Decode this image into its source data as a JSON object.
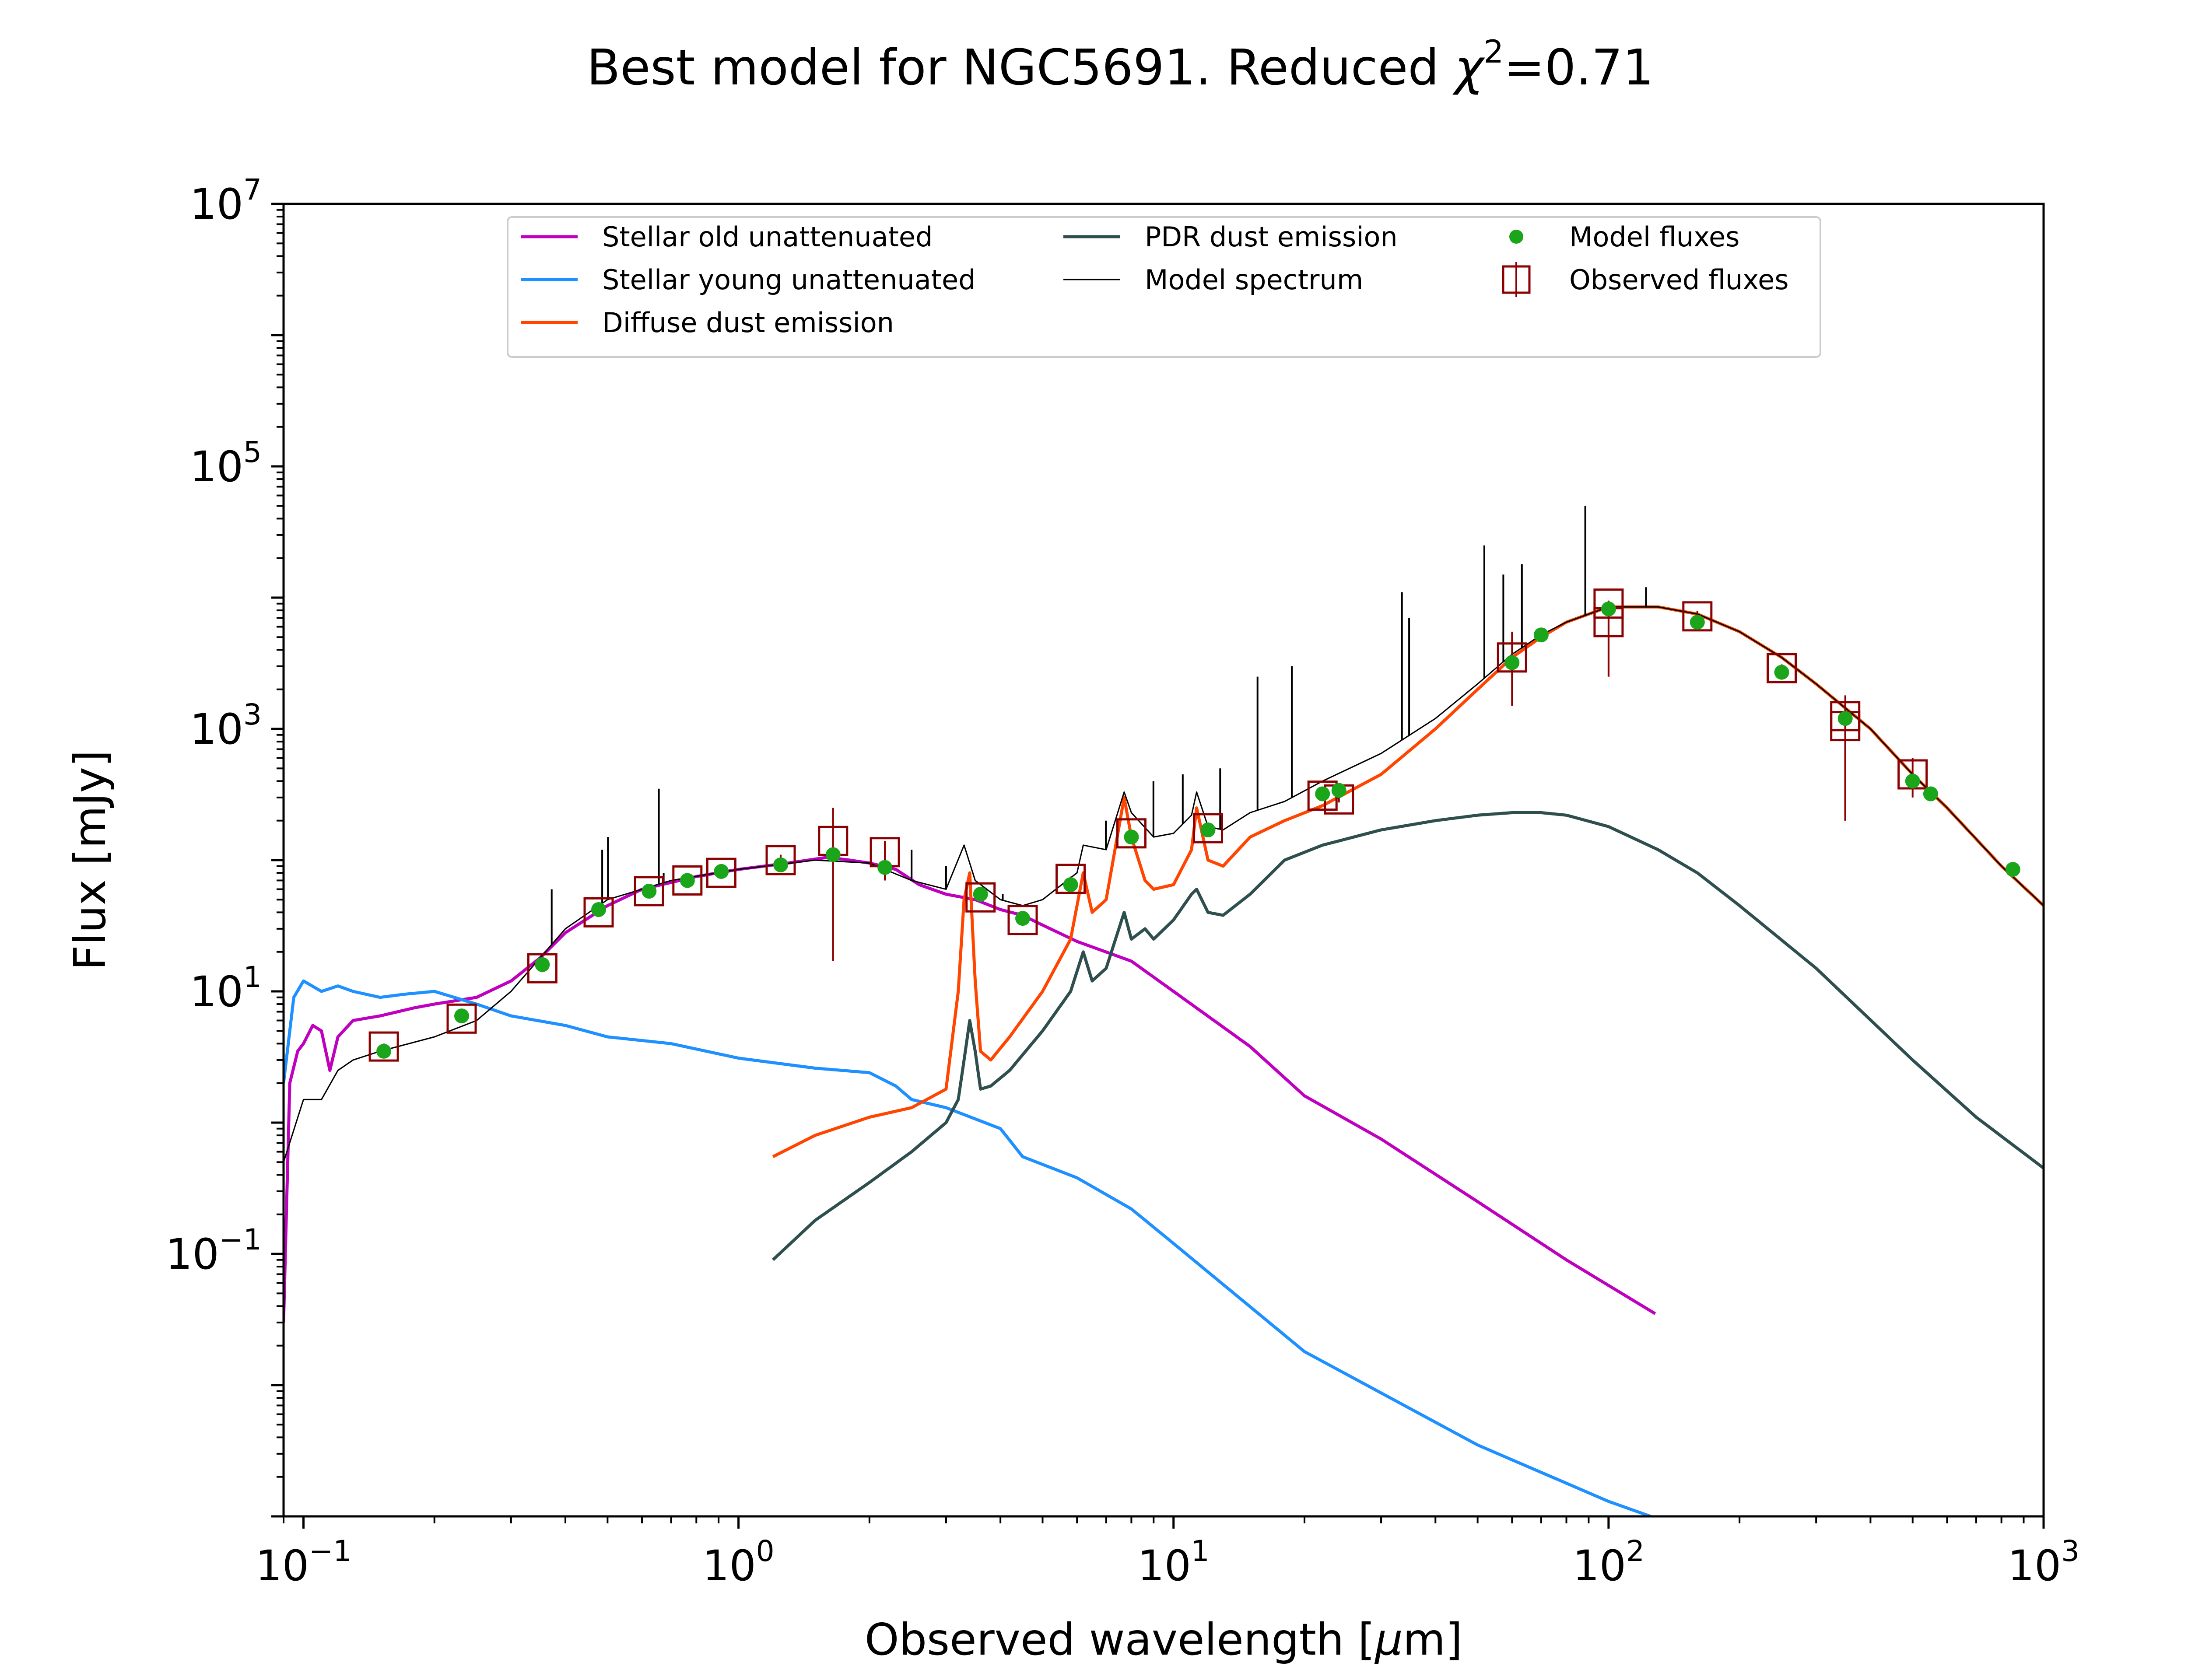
{
  "chart_data": {
    "type": "line",
    "title": "Best model for NGC5691. Reduced χ²=0.71",
    "title_parts": {
      "prefix": "Best model for NGC5691. Reduced ",
      "symbol": "χ",
      "sup": "2",
      "suffix": "=0.71"
    },
    "xlabel": "Observed wavelength [μm]",
    "xlabel_parts": {
      "prefix": "Observed wavelength [",
      "symbol": "μ",
      "suffix": "m]"
    },
    "ylabel": "Flux [mJy]",
    "xscale": "log",
    "yscale": "log",
    "xlim": [
      0.09,
      1000
    ],
    "ylim": [
      0.001,
      10000000
    ],
    "x_ticks": [
      {
        "base": "10",
        "exp": "−1",
        "value": 0.1
      },
      {
        "base": "10",
        "exp": "0",
        "value": 1
      },
      {
        "base": "10",
        "exp": "1",
        "value": 10
      },
      {
        "base": "10",
        "exp": "2",
        "value": 100
      },
      {
        "base": "10",
        "exp": "3",
        "value": 1000
      }
    ],
    "y_ticks": [
      {
        "base": "10",
        "exp": "−1",
        "value": 0.1
      },
      {
        "base": "10",
        "exp": "1",
        "value": 10
      },
      {
        "base": "10",
        "exp": "3",
        "value": 1000
      },
      {
        "base": "10",
        "exp": "5",
        "value": 100000
      },
      {
        "base": "10",
        "exp": "7",
        "value": 10000000
      }
    ],
    "legend_position": "top-center",
    "series": [
      {
        "name": "Stellar old unattenuated",
        "kind": "line",
        "color": "#bf00bf",
        "x": [
          0.09,
          0.093,
          0.097,
          0.1,
          0.105,
          0.11,
          0.115,
          0.12,
          0.13,
          0.15,
          0.18,
          0.2,
          0.25,
          0.3,
          0.35,
          0.4,
          0.5,
          0.6,
          0.8,
          1.0,
          1.3,
          1.6,
          1.8,
          2.0,
          2.3,
          2.6,
          3.0,
          3.5,
          4.0,
          4.5,
          5.0,
          6.0,
          8.0,
          10,
          15,
          20,
          30,
          50,
          80,
          128
        ],
        "y": [
          0.03,
          2.0,
          3.5,
          4.0,
          5.5,
          5.0,
          2.5,
          4.5,
          6.0,
          6.5,
          7.5,
          8.0,
          9.0,
          12,
          18,
          28,
          45,
          60,
          75,
          85,
          95,
          105,
          100,
          95,
          85,
          65,
          55,
          50,
          42,
          38,
          32,
          24,
          17,
          10,
          3.8,
          1.6,
          0.75,
          0.25,
          0.09,
          0.035
        ]
      },
      {
        "name": "Stellar young unattenuated",
        "kind": "line",
        "color": "#1e90ff",
        "x": [
          0.09,
          0.095,
          0.1,
          0.11,
          0.12,
          0.13,
          0.15,
          0.17,
          0.2,
          0.25,
          0.3,
          0.4,
          0.5,
          0.7,
          1.0,
          1.5,
          2.0,
          2.3,
          2.5,
          3.0,
          4.0,
          4.5,
          6.0,
          8.0,
          10,
          20,
          50,
          100,
          125
        ],
        "y": [
          2.0,
          9.0,
          12,
          10,
          11,
          10,
          9.0,
          9.5,
          10,
          8.0,
          6.5,
          5.5,
          4.5,
          4.0,
          3.1,
          2.6,
          2.4,
          1.9,
          1.5,
          1.3,
          0.9,
          0.55,
          0.38,
          0.22,
          0.12,
          0.018,
          0.0035,
          0.0013,
          0.001
        ]
      },
      {
        "name": "Diffuse dust emission",
        "kind": "line",
        "color": "#ff4500",
        "x": [
          1.2,
          1.5,
          2.0,
          2.5,
          3.0,
          3.2,
          3.3,
          3.4,
          3.5,
          3.6,
          3.8,
          4.2,
          5.0,
          5.8,
          6.2,
          6.5,
          7.0,
          7.7,
          8.0,
          8.6,
          9.0,
          10,
          11,
          11.3,
          12,
          13,
          15,
          18,
          22,
          30,
          40,
          50,
          60,
          70,
          80,
          100,
          130,
          160,
          200,
          250,
          300,
          400,
          500,
          600,
          800,
          1000
        ],
        "y": [
          0.55,
          0.8,
          1.1,
          1.3,
          1.8,
          10,
          50,
          80,
          12,
          3.5,
          3.0,
          4.5,
          10,
          25,
          80,
          40,
          50,
          300,
          150,
          70,
          60,
          65,
          120,
          250,
          100,
          90,
          150,
          200,
          260,
          450,
          1000,
          2000,
          3500,
          5000,
          6500,
          8500,
          8500,
          7500,
          5500,
          3500,
          2200,
          1000,
          450,
          250,
          90,
          45
        ]
      },
      {
        "name": "PDR dust emission",
        "kind": "line",
        "color": "#2f4f4f",
        "x": [
          1.2,
          1.5,
          2.0,
          2.5,
          3.0,
          3.2,
          3.3,
          3.4,
          3.5,
          3.6,
          3.8,
          4.2,
          5.0,
          5.8,
          6.2,
          6.5,
          7.0,
          7.7,
          8.0,
          8.6,
          9.0,
          10,
          11,
          11.3,
          12,
          13,
          15,
          18,
          22,
          30,
          40,
          50,
          60,
          70,
          80,
          100,
          130,
          160,
          200,
          300,
          500,
          700,
          1000
        ],
        "y": [
          0.09,
          0.18,
          0.35,
          0.6,
          1.0,
          1.5,
          3.0,
          6.0,
          3.5,
          1.8,
          1.9,
          2.5,
          5.0,
          10,
          20,
          12,
          15,
          40,
          25,
          30,
          25,
          35,
          55,
          60,
          40,
          38,
          55,
          100,
          130,
          170,
          200,
          220,
          230,
          230,
          220,
          180,
          120,
          80,
          45,
          15,
          3.0,
          1.1,
          0.45
        ]
      },
      {
        "name": "Model spectrum",
        "kind": "line",
        "color": "#000000",
        "x": [
          0.09,
          0.1,
          0.11,
          0.12,
          0.13,
          0.15,
          0.2,
          0.25,
          0.3,
          0.4,
          0.5,
          0.7,
          1.0,
          1.5,
          2.0,
          2.5,
          3.0,
          3.3,
          3.5,
          4.0,
          4.5,
          5.0,
          6.0,
          6.2,
          7.0,
          7.7,
          8.0,
          9.0,
          10,
          11,
          11.3,
          12,
          13,
          15,
          18,
          22,
          30,
          40,
          50,
          60,
          70,
          80,
          100,
          130,
          160,
          200,
          250,
          300,
          400,
          500,
          600,
          800,
          1000
        ],
        "y": [
          0.5,
          1.5,
          1.5,
          2.5,
          3.0,
          3.5,
          4.5,
          6.0,
          10,
          30,
          50,
          70,
          85,
          100,
          95,
          70,
          60,
          130,
          70,
          50,
          45,
          50,
          80,
          130,
          120,
          330,
          230,
          150,
          160,
          220,
          330,
          180,
          170,
          230,
          280,
          400,
          650,
          1200,
          2200,
          3700,
          5200,
          6500,
          8500,
          8500,
          7500,
          5500,
          3500,
          2200,
          1000,
          450,
          250,
          90,
          45
        ],
        "emission_lines": [
          {
            "x": 0.372,
            "peak": 60
          },
          {
            "x": 0.486,
            "peak": 120
          },
          {
            "x": 0.501,
            "peak": 150
          },
          {
            "x": 0.656,
            "peak": 350
          },
          {
            "x": 0.673,
            "peak": 80
          },
          {
            "x": 2.5,
            "peak": 120
          },
          {
            "x": 3.0,
            "peak": 90
          },
          {
            "x": 4.05,
            "peak": 55
          },
          {
            "x": 6.99,
            "peak": 200
          },
          {
            "x": 8.99,
            "peak": 400
          },
          {
            "x": 10.5,
            "peak": 450
          },
          {
            "x": 12.8,
            "peak": 500
          },
          {
            "x": 15.6,
            "peak": 2500
          },
          {
            "x": 18.7,
            "peak": 3000
          },
          {
            "x": 33.5,
            "peak": 11000
          },
          {
            "x": 34.8,
            "peak": 7000
          },
          {
            "x": 51.8,
            "peak": 25000
          },
          {
            "x": 57.3,
            "peak": 15000
          },
          {
            "x": 63.2,
            "peak": 18000
          },
          {
            "x": 88.4,
            "peak": 50000
          },
          {
            "x": 121.9,
            "peak": 12000
          }
        ]
      },
      {
        "name": "Model fluxes",
        "kind": "scatter",
        "color": "#1aa51a",
        "x": [
          0.153,
          0.231,
          0.354,
          0.477,
          0.623,
          0.763,
          0.913,
          1.25,
          1.65,
          2.17,
          3.6,
          4.5,
          5.8,
          8.0,
          12,
          22,
          24,
          60,
          70,
          100,
          160,
          250,
          350,
          500,
          550,
          850
        ],
        "y": [
          3.5,
          6.5,
          16,
          42,
          58,
          70,
          82,
          92,
          110,
          88,
          55,
          36,
          65,
          150,
          170,
          320,
          340,
          3200,
          5200,
          8200,
          6500,
          2700,
          1200,
          400,
          320,
          85
        ]
      },
      {
        "name": "Observed fluxes",
        "kind": "errorbar",
        "color": "#8b0000",
        "x": [
          0.153,
          0.231,
          0.354,
          0.477,
          0.623,
          0.763,
          0.913,
          1.25,
          1.65,
          2.17,
          3.6,
          4.5,
          5.8,
          8.0,
          12,
          22,
          24,
          60,
          100,
          100,
          160,
          250,
          350,
          350,
          500
        ],
        "y": [
          3.8,
          6.2,
          15,
          40,
          58,
          70,
          80,
          100,
          140,
          115,
          52,
          35,
          72,
          160,
          175,
          310,
          290,
          3500,
          9000,
          6500,
          7200,
          2900,
          1250,
          1050,
          450
        ],
        "err_lo": [
          3.6,
          5.9,
          14,
          38,
          55,
          67,
          77,
          90,
          17,
          70,
          50,
          33,
          69,
          150,
          165,
          290,
          275,
          1500,
          2500,
          2500,
          6500,
          2700,
          200,
          200,
          300
        ],
        "err_hi": [
          4.0,
          6.5,
          16,
          42,
          61,
          73,
          84,
          110,
          250,
          140,
          54,
          37,
          75,
          170,
          185,
          330,
          305,
          5500,
          9500,
          7000,
          7900,
          3100,
          1800,
          1600,
          600
        ]
      }
    ]
  }
}
